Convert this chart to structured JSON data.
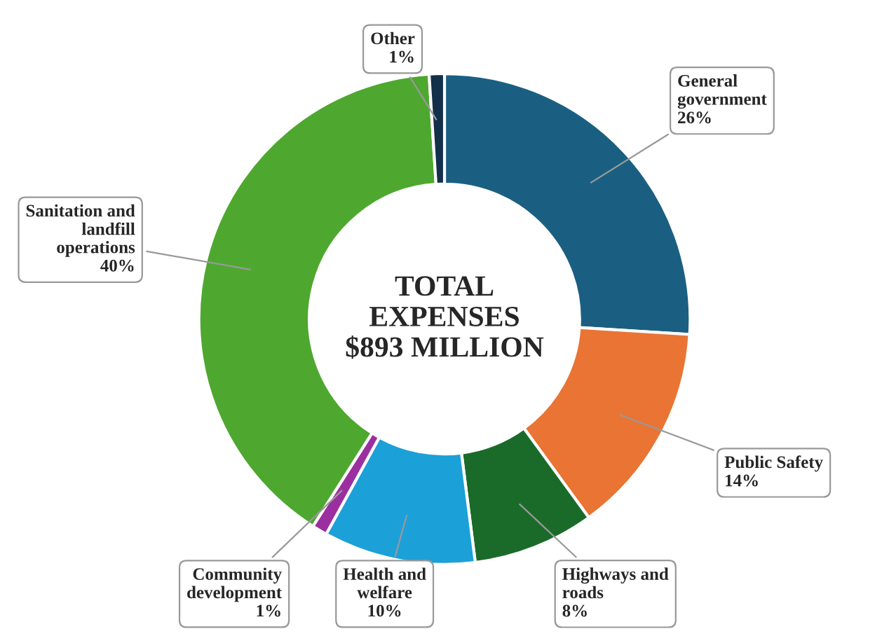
{
  "chart_data": {
    "type": "donut",
    "title": "TOTAL EXPENSES $893 MILLION",
    "categories": [
      "General government",
      "Public Safety",
      "Highways and roads",
      "Health and welfare",
      "Community development",
      "Sanitation and landfill operations",
      "Other"
    ],
    "values": [
      26,
      14,
      8,
      10,
      1,
      40,
      1
    ],
    "value_labels": [
      "26%",
      "14%",
      "8%",
      "10%",
      "1%",
      "40%",
      "1%"
    ],
    "colors": [
      "#1a5f82",
      "#e97434",
      "#1a6b2a",
      "#1ca0d8",
      "#9b2fa0",
      "#4ea82f",
      "#13304a"
    ]
  }
}
